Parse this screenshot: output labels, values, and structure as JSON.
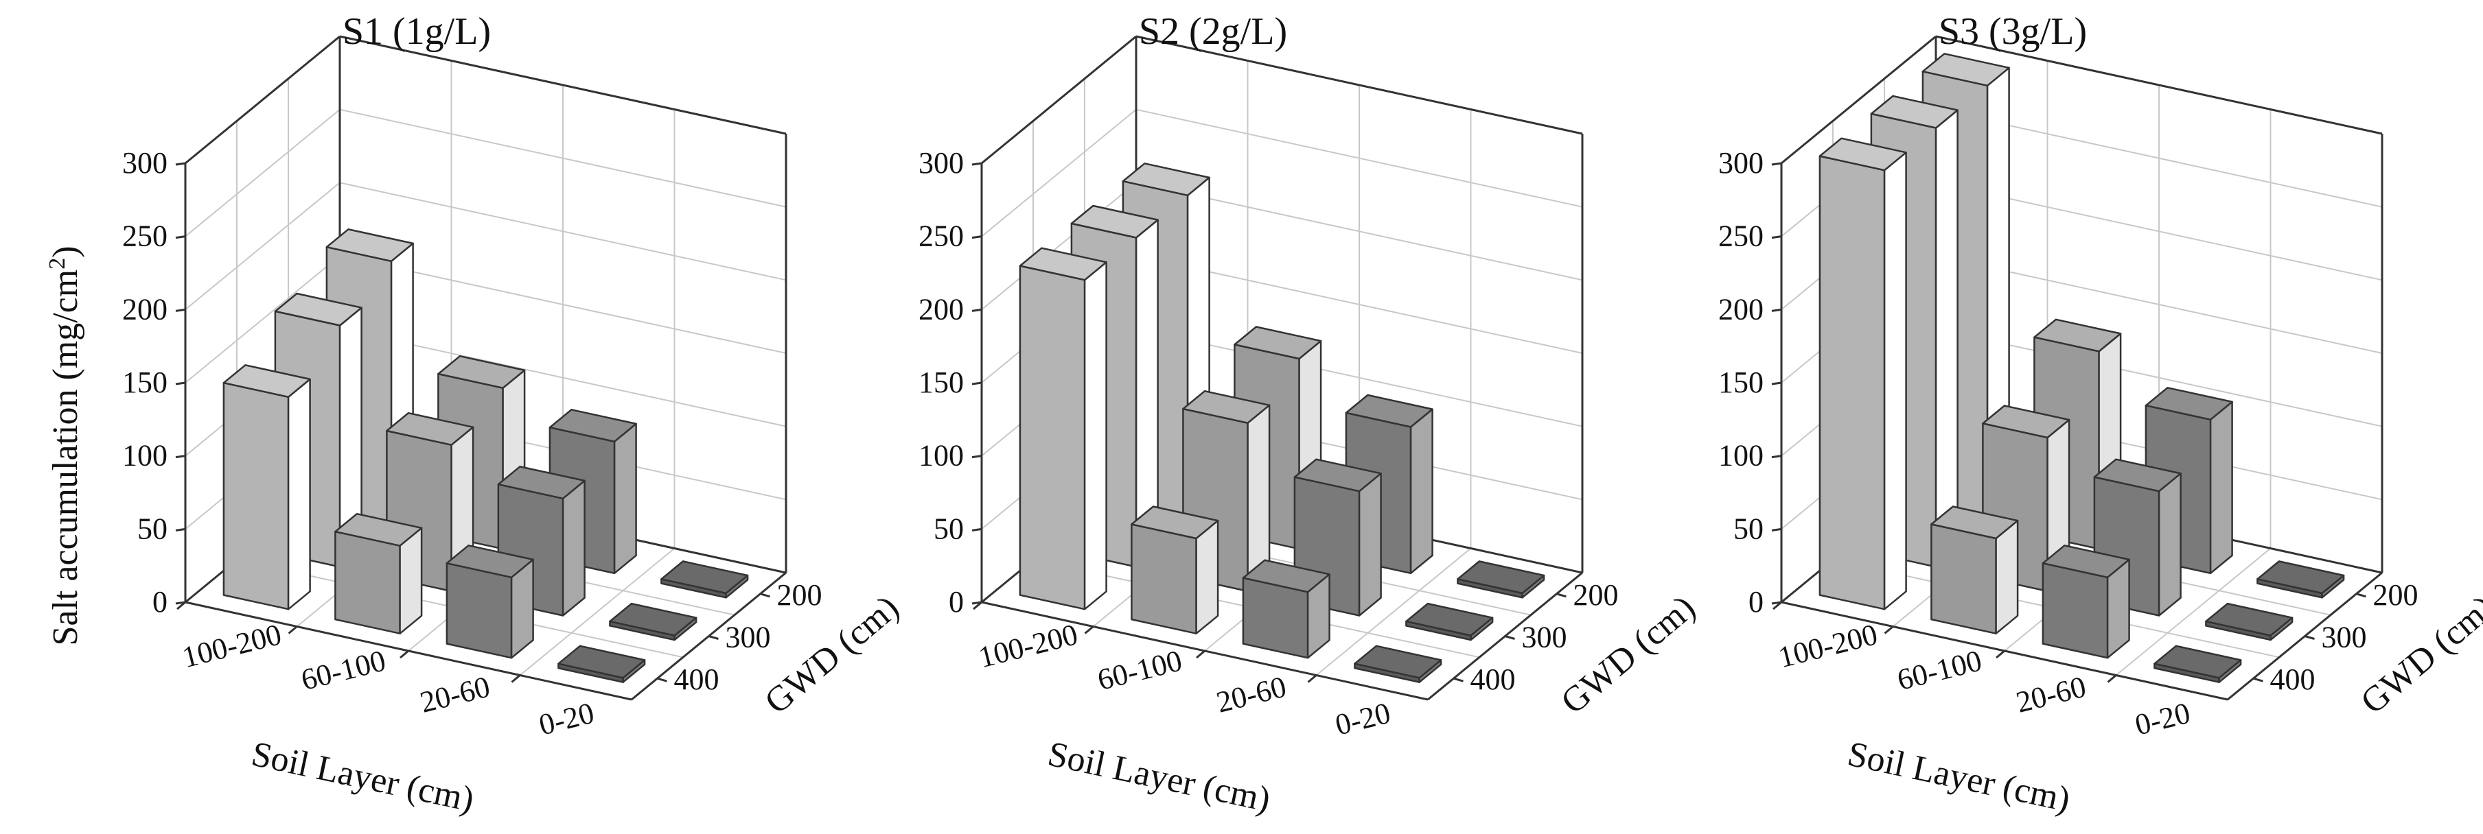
{
  "figure": {
    "ylabel_text": "Salt accumulation (mg/cm",
    "ylabel_sup": "2",
    "ylabel_close": ")"
  },
  "colors": {
    "soil_layers": {
      "100-200": {
        "front": "#b4b4b4",
        "side": "#ffffff",
        "top": "#c8c8c8"
      },
      "60-100": {
        "front": "#9a9a9a",
        "side": "#e4e4e4",
        "top": "#b0b0b0"
      },
      "20-60": {
        "front": "#7a7a7a",
        "side": "#a8a8a8",
        "top": "#8e8e8e"
      },
      "0-20": {
        "front": "#5a5a5a",
        "side": "#7a7a7a",
        "top": "#6a6a6a"
      }
    }
  },
  "chart_data": [
    {
      "type": "bar3d",
      "title": "S1 (1g/L)",
      "xlabel": "Soil Layer (cm)",
      "ylabel": "GWD (cm)",
      "zlabel": "Salt accumulation (mg/cm2)",
      "soil_layers": [
        "100-200",
        "60-100",
        "20-60",
        "0-20"
      ],
      "gwd": [
        "200",
        "300",
        "400"
      ],
      "zlim": [
        0,
        300
      ],
      "zticks": [
        "0",
        "50",
        "100",
        "150",
        "200",
        "250",
        "300"
      ],
      "series": [
        {
          "name": "400",
          "values": [
            145,
            60,
            55,
            3
          ]
        },
        {
          "name": "300",
          "values": [
            165,
            100,
            80,
            3
          ]
        },
        {
          "name": "200",
          "values": [
            180,
            110,
            90,
            3
          ]
        }
      ]
    },
    {
      "type": "bar3d",
      "title": "S2 (2g/L)",
      "xlabel": "Soil Layer (cm)",
      "ylabel": "GWD (cm)",
      "zlabel": "Salt accumulation (mg/cm2)",
      "soil_layers": [
        "100-200",
        "60-100",
        "20-60",
        "0-20"
      ],
      "gwd": [
        "200",
        "300",
        "400"
      ],
      "zlim": [
        0,
        300
      ],
      "zticks": [
        "0",
        "50",
        "100",
        "150",
        "200",
        "250",
        "300"
      ],
      "series": [
        {
          "name": "400",
          "values": [
            225,
            65,
            45,
            3
          ]
        },
        {
          "name": "300",
          "values": [
            225,
            115,
            85,
            3
          ]
        },
        {
          "name": "200",
          "values": [
            225,
            130,
            100,
            3
          ]
        }
      ]
    },
    {
      "type": "bar3d",
      "title": "S3 (3g/L)",
      "xlabel": "Soil Layer (cm)",
      "ylabel": "GWD (cm)",
      "zlabel": "Salt accumulation (mg/cm2)",
      "soil_layers": [
        "100-200",
        "60-100",
        "20-60",
        "0-20"
      ],
      "gwd": [
        "200",
        "300",
        "400"
      ],
      "zlim": [
        0,
        300
      ],
      "zticks": [
        "0",
        "50",
        "100",
        "150",
        "200",
        "250",
        "300"
      ],
      "series": [
        {
          "name": "400",
          "values": [
            300,
            65,
            55,
            3
          ]
        },
        {
          "name": "300",
          "values": [
            300,
            105,
            85,
            3
          ]
        },
        {
          "name": "200",
          "values": [
            300,
            135,
            105,
            3
          ]
        }
      ]
    }
  ]
}
